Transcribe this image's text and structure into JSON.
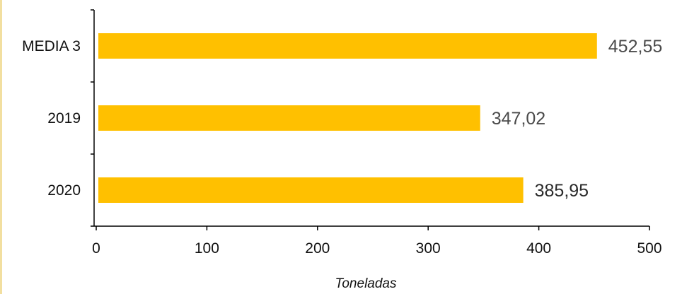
{
  "chart_data": {
    "type": "bar",
    "orientation": "horizontal",
    "categories": [
      "MEDIA 3",
      "2019",
      "2020"
    ],
    "values": [
      452.55,
      347.02,
      385.95
    ],
    "value_labels": [
      "452,55",
      "347,02",
      "385,95"
    ],
    "xlabel": "Toneladas",
    "ylabel": "",
    "title": "",
    "xlim": [
      0,
      500
    ],
    "xticks": [
      0,
      100,
      200,
      300,
      400,
      500
    ],
    "xtick_labels": [
      "0",
      "100",
      "200",
      "300",
      "400",
      "500"
    ],
    "grid": false,
    "legend": "none",
    "bar_color": "#FFC000"
  }
}
